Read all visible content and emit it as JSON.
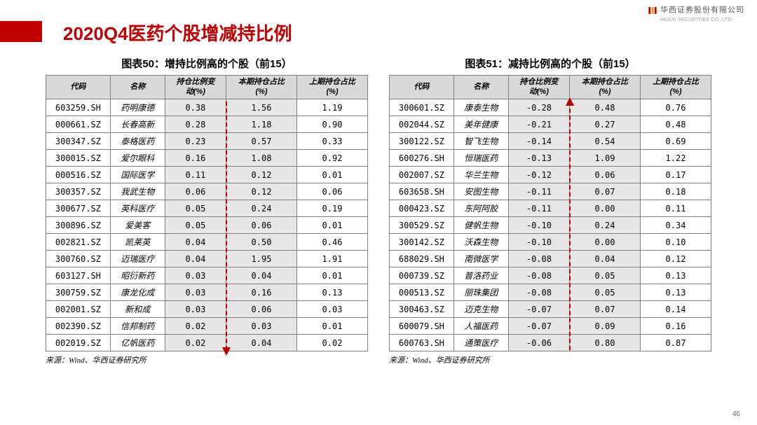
{
  "header": {
    "title": "2020Q4医药个股增减持比例",
    "logo_cn": "华西证券股份有限公司",
    "logo_en": "HUAXI SECURITIES CO.,LTD."
  },
  "page_number": "46",
  "source_text": "来源：Wind、华西证券研究所",
  "columns": [
    "代码",
    "名称",
    "持仓比例变动(%)",
    "本期持仓占比(%)",
    "上期持仓占比(%)"
  ],
  "left": {
    "title": "图表50：增持比例高的个股（前15）",
    "rows": [
      [
        "603259.SH",
        "药明康德",
        "0.38",
        "1.56",
        "1.19"
      ],
      [
        "000661.SZ",
        "长春高新",
        "0.28",
        "1.18",
        "0.90"
      ],
      [
        "300347.SZ",
        "泰格医药",
        "0.23",
        "0.57",
        "0.33"
      ],
      [
        "300015.SZ",
        "爱尔眼科",
        "0.16",
        "1.08",
        "0.92"
      ],
      [
        "000516.SZ",
        "国际医学",
        "0.11",
        "0.12",
        "0.01"
      ],
      [
        "300357.SZ",
        "我武生物",
        "0.06",
        "0.12",
        "0.06"
      ],
      [
        "300677.SZ",
        "英科医疗",
        "0.05",
        "0.24",
        "0.19"
      ],
      [
        "300896.SZ",
        "爱美客",
        "0.05",
        "0.06",
        "0.01"
      ],
      [
        "002821.SZ",
        "凯莱英",
        "0.04",
        "0.50",
        "0.46"
      ],
      [
        "300760.SZ",
        "迈瑞医疗",
        "0.04",
        "1.95",
        "1.91"
      ],
      [
        "603127.SH",
        "昭衍新药",
        "0.03",
        "0.04",
        "0.01"
      ],
      [
        "300759.SZ",
        "康龙化成",
        "0.03",
        "0.16",
        "0.13"
      ],
      [
        "002001.SZ",
        "新和成",
        "0.03",
        "0.06",
        "0.03"
      ],
      [
        "002390.SZ",
        "信邦制药",
        "0.02",
        "0.03",
        "0.01"
      ],
      [
        "002019.SZ",
        "亿帆医药",
        "0.02",
        "0.04",
        "0.02"
      ]
    ],
    "arrow": "down"
  },
  "right": {
    "title": "图表51：减持比例高的个股（前15）",
    "rows": [
      [
        "300601.SZ",
        "康泰生物",
        "-0.28",
        "0.48",
        "0.76"
      ],
      [
        "002044.SZ",
        "美年健康",
        "-0.21",
        "0.27",
        "0.48"
      ],
      [
        "300122.SZ",
        "智飞生物",
        "-0.14",
        "0.54",
        "0.69"
      ],
      [
        "600276.SH",
        "恒瑞医药",
        "-0.13",
        "1.09",
        "1.22"
      ],
      [
        "002007.SZ",
        "华兰生物",
        "-0.12",
        "0.06",
        "0.17"
      ],
      [
        "603658.SH",
        "安图生物",
        "-0.11",
        "0.07",
        "0.18"
      ],
      [
        "000423.SZ",
        "东阿阿胶",
        "-0.11",
        "0.00",
        "0.11"
      ],
      [
        "300529.SZ",
        "健帆生物",
        "-0.10",
        "0.24",
        "0.34"
      ],
      [
        "300142.SZ",
        "沃森生物",
        "-0.10",
        "0.00",
        "0.10"
      ],
      [
        "688029.SH",
        "南微医学",
        "-0.08",
        "0.04",
        "0.12"
      ],
      [
        "000739.SZ",
        "普洛药业",
        "-0.08",
        "0.05",
        "0.13"
      ],
      [
        "000513.SZ",
        "丽珠集团",
        "-0.08",
        "0.05",
        "0.13"
      ],
      [
        "300463.SZ",
        "迈克生物",
        "-0.07",
        "0.07",
        "0.14"
      ],
      [
        "600079.SH",
        "人福医药",
        "-0.07",
        "0.09",
        "0.16"
      ],
      [
        "600763.SH",
        "通策医疗",
        "-0.06",
        "0.80",
        "0.87"
      ]
    ],
    "arrow": "up"
  },
  "style": {
    "divider_left_pct": 60,
    "header_bg": "#d9d9d9",
    "shade_bg": "#e6e6e6",
    "border_color": "#7f7f7f",
    "accent": "#c00000",
    "col_widths_pct": [
      20,
      17,
      19,
      22,
      22
    ]
  }
}
